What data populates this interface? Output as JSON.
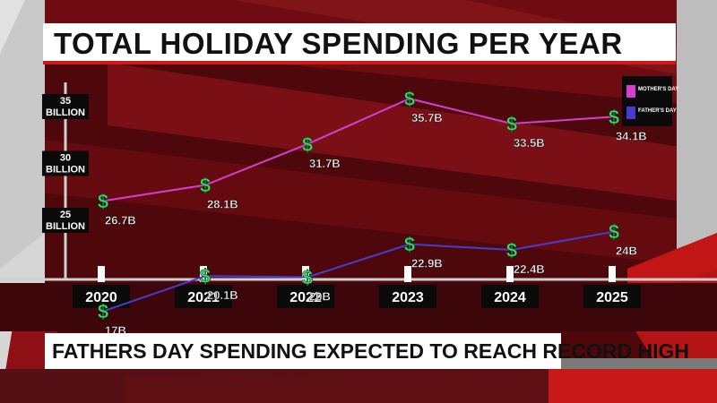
{
  "title": "TOTAL HOLIDAY SPENDING PER YEAR",
  "headline": "FATHERS DAY SPENDING EXPECTED TO REACH RECORD HIGH",
  "colors": {
    "mothers_day": "#d53fd0",
    "fathers_day": "#4a3bd0",
    "dollar_sign": "#3cd96a",
    "accent_red": "#d01818"
  },
  "chart_data": {
    "type": "line",
    "x": [
      "2020",
      "2021",
      "2022",
      "2023",
      "2024",
      "2025"
    ],
    "y_ticks": [
      {
        "value": 25,
        "line1": "25",
        "line2": "BILLION"
      },
      {
        "value": 30,
        "line1": "30",
        "line2": "BILLION"
      },
      {
        "value": 35,
        "line1": "35",
        "line2": "BILLION"
      }
    ],
    "ylim": [
      15,
      37
    ],
    "grid": false,
    "legend_position": "top-right",
    "marker_symbol": "$",
    "series": [
      {
        "name": "MOTHER'S DAY",
        "color_key": "mothers_day",
        "values": [
          26.7,
          28.1,
          31.7,
          35.7,
          33.5,
          34.1
        ],
        "labels": [
          "26.7B",
          "28.1B",
          "31.7B",
          "35.7B",
          "33.5B",
          "34.1B"
        ]
      },
      {
        "name": "FATHER'S DAY",
        "color_key": "fathers_day",
        "values": [
          17,
          20.1,
          20,
          22.9,
          22.4,
          24
        ],
        "labels": [
          "17B",
          "20.1B",
          "20B",
          "22.9B",
          "22.4B",
          "24B"
        ]
      }
    ]
  }
}
